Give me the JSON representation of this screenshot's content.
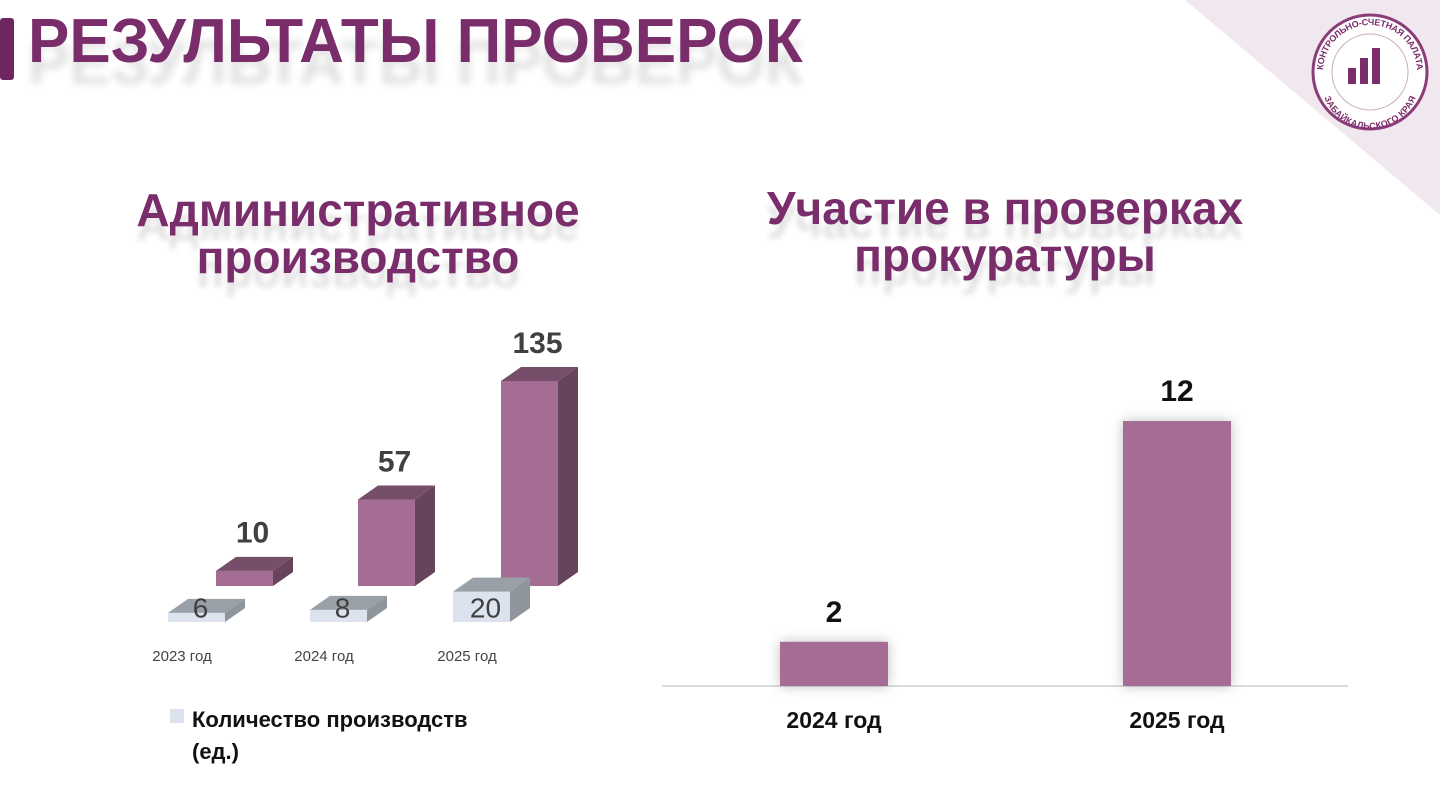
{
  "header": {
    "title": "РЕЗУЛЬТАТЫ ПРОВЕРОК"
  },
  "logo": {
    "top_text": "КОНТРОЛЬНО-СЧЕТНАЯ ПАЛАТА",
    "bottom_text": "ЗАБАЙКАЛЬСКОГО КРАЯ"
  },
  "chart_data": [
    {
      "type": "bar3d",
      "title": "Административное производство",
      "categories": [
        "2023 год",
        "2024 год",
        "2025 год"
      ],
      "series": [
        {
          "name": "Количество производств (ед.)",
          "color": "#dce3ee",
          "values": [
            6,
            8,
            20
          ]
        },
        {
          "color": "#a56d93",
          "values": [
            10,
            57,
            135
          ]
        }
      ]
    },
    {
      "type": "bar",
      "title": "Участие в проверках прокуратуры",
      "categories": [
        "2024 год",
        "2025 год"
      ],
      "values": [
        2,
        12
      ],
      "color": "#a56d93"
    }
  ]
}
